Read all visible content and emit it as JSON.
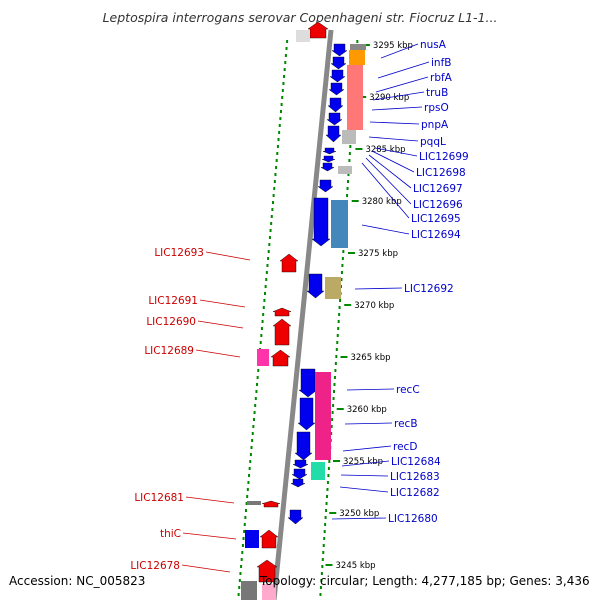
{
  "title": "Leptospira interrogans serovar Copenhageni str. Fiocruz L1-1...",
  "accession": "Accession: NC_005823",
  "summary": "Topology: circular; Length: 4,277,185 bp; Genes: 3,436",
  "colors": {
    "backbone": "#888888",
    "plus_strand": "#0000ee",
    "minus_strand": "#ee0000",
    "scale_ticks": "#008800",
    "right_labels": "#0000cc",
    "left_labels": "#cc0000"
  },
  "scale": {
    "unit": "kbp",
    "ticks": [
      "3295 kbp",
      "3290 kbp",
      "3285 kbp",
      "3280 kbp",
      "3275 kbp",
      "3270 kbp",
      "3265 kbp",
      "3260 kbp",
      "3255 kbp",
      "3250 kbp",
      "3245 kbp"
    ]
  },
  "right_labels": [
    "nusA",
    "infB",
    "rbfA",
    "truB",
    "rpsO",
    "pnpA",
    "pqqL",
    "LIC12699",
    "LIC12698",
    "LIC12697",
    "LIC12696",
    "LIC12695",
    "LIC12694",
    "LIC12692",
    "recC",
    "recB",
    "recD",
    "LIC12684",
    "LIC12683",
    "LIC12682",
    "LIC12680"
  ],
  "left_labels": [
    "LIC12693",
    "LIC12691",
    "LIC12690",
    "LIC12689",
    "LIC12681",
    "thiC",
    "LIC12678"
  ]
}
